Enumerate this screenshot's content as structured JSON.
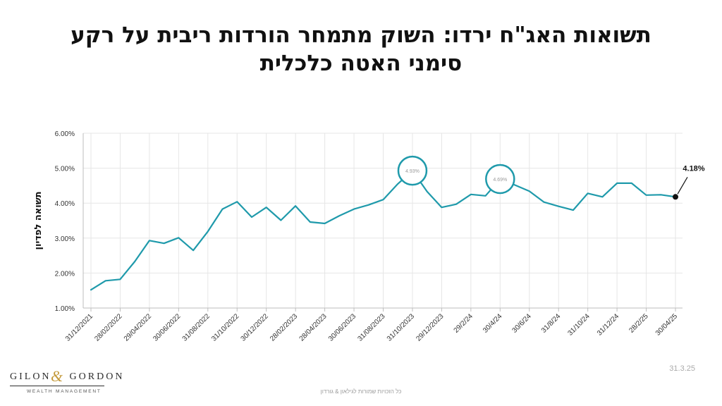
{
  "title_lines": [
    "תשואות האג\"ח ירדו: השוק מתמחר הורדות ריבית על רקע",
    "סימני האטה כלכלית"
  ],
  "date_note": "31.3.25",
  "footer_note": "כל הזכויות שמורות לגילאון & גורדון",
  "logo": {
    "brand_left": "GILON",
    "ampersand": "&",
    "brand_right": "GORDON",
    "subtitle": "WEALTH MANAGEMENT",
    "accent_color": "#c49a3c"
  },
  "colors": {
    "line": "#1f9aab",
    "grid": "#e6e6e6",
    "axis": "#bdbdbd"
  },
  "chart_data": {
    "type": "line",
    "ylabel": "תשואה לפדיון",
    "ylim": [
      1.0,
      6.0
    ],
    "yticks": [
      "1.00%",
      "2.00%",
      "3.00%",
      "4.00%",
      "5.00%",
      "6.00%"
    ],
    "grid": true,
    "x_tick_labels": [
      "31/12/2021",
      "28/02/2022",
      "29/04/2022",
      "30/06/2022",
      "31/08/2022",
      "31/10/2022",
      "30/12/2022",
      "28/02/2023",
      "28/04/2023",
      "30/06/2023",
      "31/08/2023",
      "31/10/2023",
      "29/12/2023",
      "29/2/24",
      "30/4/24",
      "30/6/24",
      "31/8/24",
      "31/10/24",
      "31/12/24",
      "28/2/25",
      "30/04/25"
    ],
    "series": [
      {
        "values": [
          1.52,
          1.78,
          1.82,
          2.33,
          2.93,
          2.85,
          3.01,
          2.65,
          3.19,
          3.83,
          4.04,
          3.6,
          3.88,
          3.51,
          3.92,
          3.46,
          3.42,
          3.64,
          3.83,
          3.95,
          4.1,
          4.55,
          4.93,
          4.33,
          3.88,
          3.97,
          4.25,
          4.21,
          4.69,
          4.52,
          4.34,
          4.03,
          3.91,
          3.8,
          4.28,
          4.18,
          4.57,
          4.57,
          4.23,
          4.24,
          4.18
        ]
      }
    ],
    "annotations": [
      {
        "text": "4.93%",
        "point_index": 22,
        "style": "circle"
      },
      {
        "text": "4.69%",
        "point_index": 28,
        "style": "circle"
      },
      {
        "text": "4.18%",
        "point_index": 40,
        "style": "arrow-dot"
      }
    ]
  }
}
